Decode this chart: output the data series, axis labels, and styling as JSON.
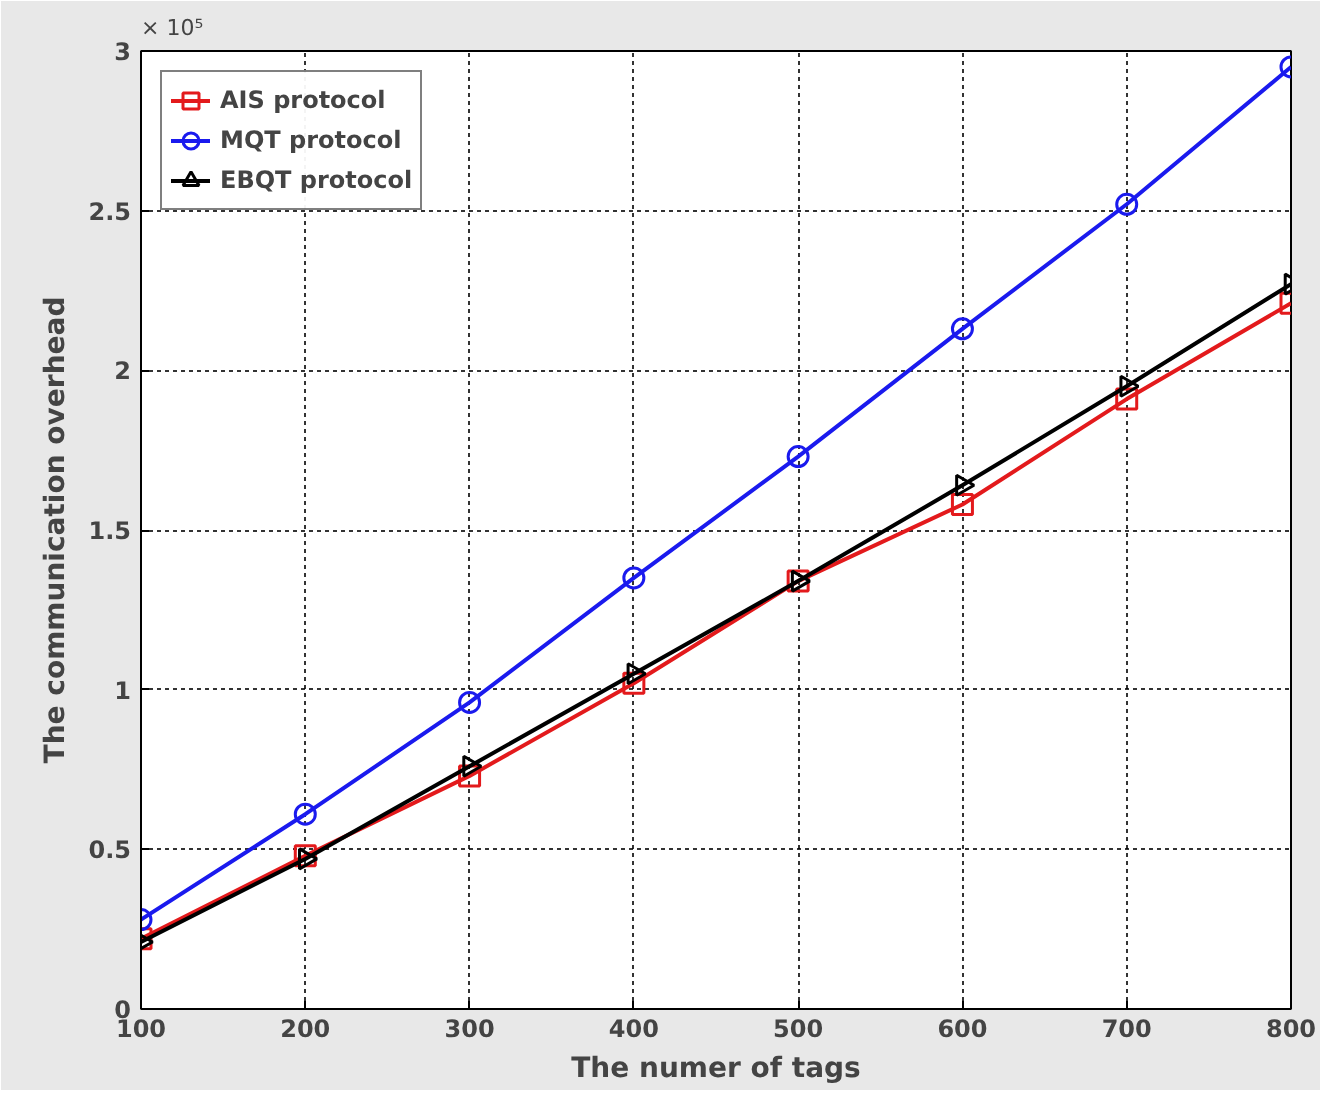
{
  "chart_data": {
    "type": "line",
    "xlabel": "The numer of tags",
    "ylabel": "The communication overhead",
    "annotations": [
      "× 10⁵"
    ],
    "x": [
      100,
      200,
      300,
      400,
      500,
      600,
      700,
      800
    ],
    "xlim": [
      100,
      800
    ],
    "xticks": [
      100,
      200,
      300,
      400,
      500,
      600,
      700,
      800
    ],
    "ylim": [
      0,
      3
    ],
    "yticks": [
      0,
      0.5,
      1,
      1.5,
      2,
      2.5,
      3
    ],
    "grid": true,
    "legend": "top left",
    "line_style": "solid",
    "series": [
      {
        "name": "AIS protocol",
        "color": "#e31a1c",
        "marker": "square",
        "values": [
          0.22,
          0.48,
          0.73,
          1.02,
          1.34,
          1.58,
          1.91,
          2.21
        ]
      },
      {
        "name": "MQT protocol",
        "color": "#1a1aee",
        "marker": "circle",
        "values": [
          0.28,
          0.61,
          0.96,
          1.35,
          1.73,
          2.13,
          2.52,
          2.95
        ]
      },
      {
        "name": "EBQT protocol",
        "color": "#000000",
        "marker": "triangle",
        "values": [
          0.21,
          0.47,
          0.76,
          1.05,
          1.34,
          1.64,
          1.95,
          2.27
        ]
      }
    ]
  }
}
